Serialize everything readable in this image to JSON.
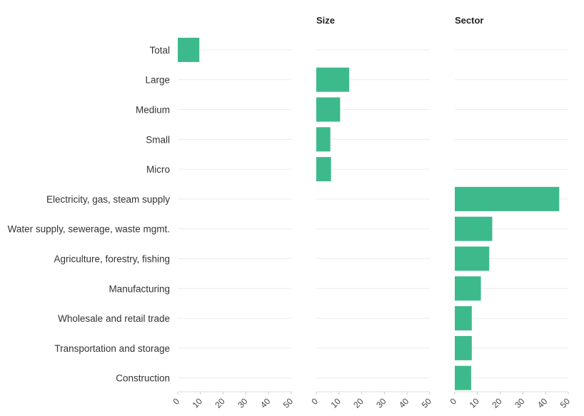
{
  "chart_data": {
    "type": "bar",
    "orientation": "horizontal",
    "grid": true,
    "categories": [
      "Total",
      "Large",
      "Medium",
      "Small",
      "Micro",
      "Electricity, gas, steam supply",
      "Water supply, sewerage, waste mgmt.",
      "Agriculture, forestry, fishing",
      "Manufacturing",
      "Wholesale and retail trade",
      "Transportation and storage",
      "Construction"
    ],
    "panels": [
      {
        "title": "",
        "xlim": [
          0,
          50
        ],
        "ticks": [
          "0",
          "10",
          "20",
          "30",
          "40",
          "50"
        ],
        "values": [
          9.5,
          null,
          null,
          null,
          null,
          null,
          null,
          null,
          null,
          null,
          null,
          null
        ]
      },
      {
        "title": "Size",
        "xlim": [
          0,
          50
        ],
        "ticks": [
          "0",
          "10",
          "20",
          "30",
          "40",
          "50"
        ],
        "values": [
          null,
          14.5,
          10.5,
          6.2,
          6.5,
          null,
          null,
          null,
          null,
          null,
          null,
          null
        ]
      },
      {
        "title": "Sector",
        "xlim": [
          0,
          50
        ],
        "ticks": [
          "0",
          "10",
          "20",
          "30",
          "40",
          "50"
        ],
        "values": [
          null,
          null,
          null,
          null,
          null,
          46,
          16.5,
          15.2,
          11.5,
          7.5,
          7.5,
          7.2
        ]
      }
    ],
    "colors": {
      "bar": "#3dba8c"
    }
  }
}
